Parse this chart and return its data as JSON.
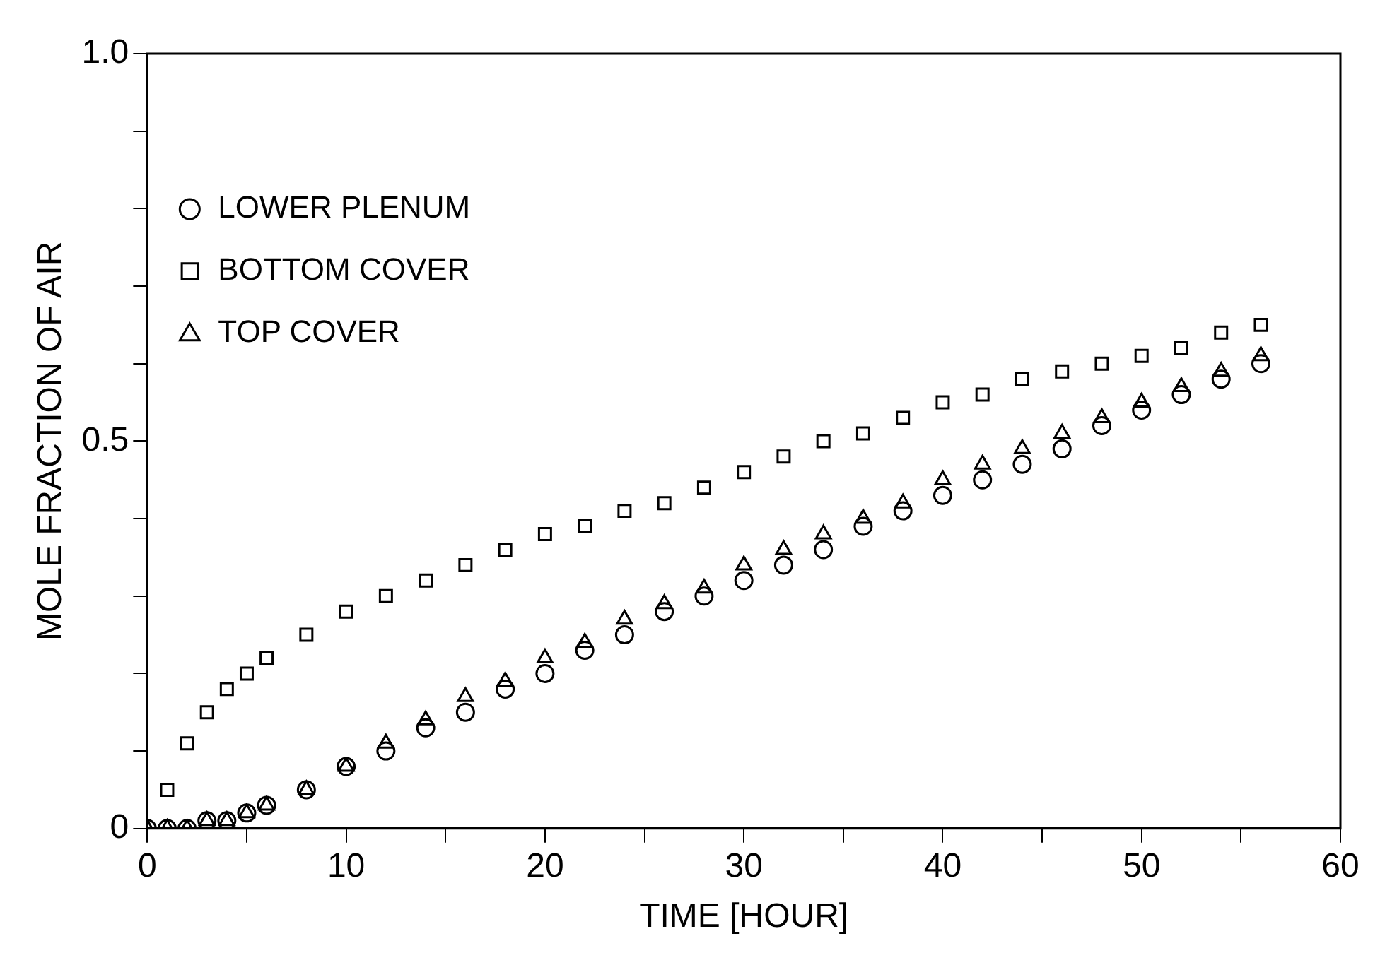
{
  "chart_data": {
    "type": "scatter",
    "xlabel": "TIME [HOUR]",
    "ylabel": "MOLE FRACTION OF AIR",
    "x": [
      0,
      1,
      2,
      3,
      4,
      5,
      6,
      8,
      10,
      12,
      14,
      16,
      18,
      20,
      22,
      24,
      26,
      28,
      30,
      32,
      34,
      36,
      38,
      40,
      42,
      44,
      46,
      48,
      50,
      52,
      54,
      56
    ],
    "xlim": [
      0,
      60
    ],
    "xticks": [
      0,
      {
        "value": 5,
        "label": null
      },
      10,
      {
        "value": 15,
        "label": null
      },
      20,
      {
        "value": 25,
        "label": null
      },
      30,
      {
        "value": 35,
        "label": null
      },
      40,
      {
        "value": 45,
        "label": null
      },
      50,
      {
        "value": 55,
        "label": null
      },
      60
    ],
    "ylim": [
      0,
      1
    ],
    "yticks": [
      0,
      {
        "value": 0.1,
        "label": null
      },
      {
        "value": 0.2,
        "label": null
      },
      {
        "value": 0.3,
        "label": null
      },
      {
        "value": 0.4,
        "label": null
      },
      {
        "value": 0.5,
        "label": "0.5"
      },
      {
        "value": 0.6,
        "label": null
      },
      {
        "value": 0.7,
        "label": null
      },
      {
        "value": 0.8,
        "label": null
      },
      {
        "value": 0.9,
        "label": null
      },
      {
        "value": 1,
        "label": "1.0"
      }
    ],
    "legend": "top left",
    "grid": false,
    "series": [
      {
        "name": "LOWER PLENUM",
        "color": "#000000",
        "marker": "circle",
        "values": [
          0,
          0,
          0,
          0.01,
          0.01,
          0.02,
          0.03,
          0.05,
          0.08,
          0.1,
          0.13,
          0.15,
          0.18,
          0.2,
          0.23,
          0.25,
          0.28,
          0.3,
          0.32,
          0.34,
          0.36,
          0.39,
          0.41,
          0.43,
          0.45,
          0.47,
          0.49,
          0.52,
          0.54,
          0.56,
          0.58,
          0.6
        ]
      },
      {
        "name": "BOTTOM COVER",
        "color": "#000000",
        "marker": "square",
        "values": [
          null,
          0.05,
          0.11,
          0.15,
          0.18,
          0.2,
          0.22,
          0.25,
          0.28,
          0.3,
          0.32,
          0.34,
          0.36,
          0.38,
          0.39,
          0.41,
          0.42,
          0.44,
          0.46,
          0.48,
          0.5,
          0.51,
          0.53,
          0.55,
          0.56,
          0.58,
          0.59,
          0.6,
          0.61,
          0.62,
          0.64,
          0.65
        ]
      },
      {
        "name": "TOP COVER",
        "color": "#000000",
        "marker": "triangle",
        "values": [
          0,
          0,
          0,
          0.01,
          0.01,
          0.02,
          0.03,
          0.05,
          0.08,
          0.11,
          0.14,
          0.17,
          0.19,
          0.22,
          0.24,
          0.27,
          0.29,
          0.31,
          0.34,
          0.36,
          0.38,
          0.4,
          0.42,
          0.45,
          0.47,
          0.49,
          0.51,
          0.53,
          0.55,
          0.57,
          0.59,
          0.61
        ]
      }
    ]
  }
}
